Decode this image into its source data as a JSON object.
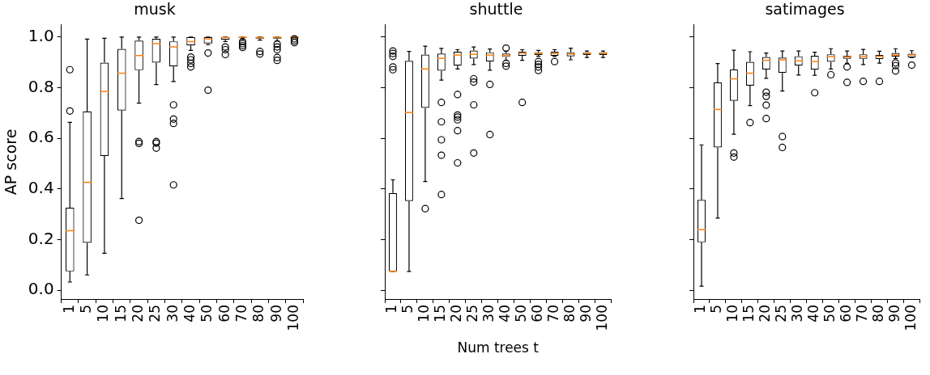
{
  "chart_data": [
    {
      "type": "box",
      "title": "musk",
      "ylabel": "AP score",
      "color": "#000000",
      "marker": "circle",
      "categories": [
        "1",
        "5",
        "10",
        "15",
        "20",
        "25",
        "30",
        "40",
        "50",
        "60",
        "70",
        "80",
        "90",
        "100"
      ],
      "ylim": [
        -0.035,
        1.048
      ],
      "yticks": [
        {
          "value": 0,
          "label": "0.0"
        },
        {
          "value": 0.2,
          "label": "0.2"
        },
        {
          "value": 0.4,
          "label": "0.4"
        },
        {
          "value": 0.6,
          "label": "0.6"
        },
        {
          "value": 0.8,
          "label": "0.8"
        },
        {
          "value": 1,
          "label": "1.0"
        }
      ],
      "boxes": [
        {
          "low": 0.032,
          "q1": 0.074,
          "median": 0.235,
          "q3": 0.326,
          "high": 0.663,
          "outliers": [
            0.708,
            0.871
          ]
        },
        {
          "low": 0.06,
          "q1": 0.187,
          "median": 0.426,
          "q3": 0.706,
          "high": 0.992
        },
        {
          "low": 0.146,
          "q1": 0.53,
          "median": 0.785,
          "q3": 0.899,
          "high": 0.995
        },
        {
          "low": 0.362,
          "q1": 0.71,
          "median": 0.857,
          "q3": 0.953,
          "high": 1.0
        },
        {
          "low": 0.739,
          "q1": 0.869,
          "median": 0.927,
          "q3": 0.986,
          "high": 1.0,
          "outliers": [
            0.587,
            0.58,
            0.276
          ]
        },
        {
          "low": 0.812,
          "q1": 0.899,
          "median": 0.974,
          "q3": 0.993,
          "high": 1.0,
          "outliers": [
            0.587,
            0.581,
            0.561
          ]
        },
        {
          "low": 0.824,
          "q1": 0.884,
          "median": 0.961,
          "q3": 0.983,
          "high": 1.0,
          "outliers": [
            0.732,
            0.676,
            0.659,
            0.416
          ]
        },
        {
          "low": 0.947,
          "q1": 0.967,
          "median": 0.982,
          "q3": 1.0,
          "high": 1.0,
          "outliers": [
            0.921,
            0.91,
            0.896,
            0.882
          ]
        },
        {
          "low": 0.97,
          "q1": 0.975,
          "median": 0.993,
          "q3": 1.0,
          "high": 1.0,
          "outliers": [
            0.937,
            0.79
          ]
        },
        {
          "low": 0.982,
          "q1": 0.989,
          "median": 0.998,
          "q3": 1.0,
          "high": 1.0,
          "outliers": [
            0.961,
            0.95,
            0.931
          ]
        },
        {
          "low": 0.99,
          "q1": 0.997,
          "median": 0.999,
          "q3": 1.0,
          "high": 1.0,
          "outliers": [
            0.982,
            0.974,
            0.966,
            0.959
          ]
        },
        {
          "low": 0.988,
          "q1": 0.994,
          "median": 0.998,
          "q3": 1.0,
          "high": 1.0,
          "outliers": [
            0.943,
            0.933
          ]
        },
        {
          "low": 0.985,
          "q1": 0.994,
          "median": 0.999,
          "q3": 1.0,
          "high": 1.0,
          "outliers": [
            0.972,
            0.961,
            0.95,
            0.919,
            0.908
          ]
        },
        {
          "low": 0.998,
          "q1": 0.998,
          "median": 0.999,
          "q3": 1.0,
          "high": 1.0,
          "outliers": [
            0.993,
            0.985,
            0.978
          ]
        }
      ]
    },
    {
      "type": "box",
      "title": "shuttle",
      "xlabel": "Num trees t",
      "color": "#000000",
      "marker": "circle",
      "tick_labels": "x",
      "categories": [
        "1",
        "5",
        "10",
        "15",
        "20",
        "25",
        "30",
        "40",
        "50",
        "60",
        "70",
        "80",
        "90",
        "100"
      ],
      "ylim": [
        -0.035,
        1.048
      ],
      "yticks": [
        {
          "value": 0,
          "label": null
        },
        {
          "value": 0.2,
          "label": null
        },
        {
          "value": 0.4,
          "label": null
        },
        {
          "value": 0.6,
          "label": null
        },
        {
          "value": 0.8,
          "label": null
        },
        {
          "value": 1,
          "label": null
        }
      ],
      "boxes": [
        {
          "low": 0.074,
          "q1": 0.074,
          "median": 0.074,
          "q3": 0.384,
          "high": 0.436,
          "outliers": [
            0.945,
            0.935,
            0.924,
            0.882,
            0.871
          ]
        },
        {
          "low": 0.074,
          "q1": 0.352,
          "median": 0.702,
          "q3": 0.906,
          "high": 0.943
        },
        {
          "low": 0.429,
          "q1": 0.72,
          "median": 0.874,
          "q3": 0.931,
          "high": 0.964,
          "outliers": [
            0.322
          ]
        },
        {
          "low": 0.83,
          "q1": 0.867,
          "median": 0.916,
          "q3": 0.935,
          "high": 0.955,
          "outliers": [
            0.742,
            0.665,
            0.594,
            0.533,
            0.378
          ]
        },
        {
          "low": 0.874,
          "q1": 0.887,
          "median": 0.929,
          "q3": 0.942,
          "high": 0.95,
          "outliers": [
            0.773,
            0.692,
            0.684,
            0.673,
            0.63,
            0.503
          ]
        },
        {
          "low": 0.891,
          "q1": 0.915,
          "median": 0.932,
          "q3": 0.947,
          "high": 0.961,
          "outliers": [
            0.835,
            0.822,
            0.732,
            0.542
          ]
        },
        {
          "low": 0.869,
          "q1": 0.903,
          "median": 0.929,
          "q3": 0.94,
          "high": 0.953,
          "outliers": [
            0.813,
            0.615
          ]
        },
        {
          "low": 0.908,
          "q1": 0.921,
          "median": 0.927,
          "q3": 0.935,
          "high": 0.945,
          "outliers": [
            0.956,
            0.896,
            0.885
          ]
        },
        {
          "low": 0.908,
          "q1": 0.926,
          "median": 0.937,
          "q3": 0.942,
          "high": 0.95,
          "outliers": [
            0.742
          ]
        },
        {
          "low": 0.924,
          "q1": 0.929,
          "median": 0.935,
          "q3": 0.94,
          "high": 0.947,
          "outliers": [
            0.903,
            0.892,
            0.882,
            0.868
          ]
        },
        {
          "low": 0.924,
          "q1": 0.926,
          "median": 0.935,
          "q3": 0.942,
          "high": 0.95,
          "outliers": [
            0.903
          ]
        },
        {
          "low": 0.91,
          "q1": 0.924,
          "median": 0.933,
          "q3": 0.94,
          "high": 0.956
        },
        {
          "low": 0.919,
          "q1": 0.929,
          "median": 0.935,
          "q3": 0.94,
          "high": 0.945
        },
        {
          "low": 0.919,
          "q1": 0.929,
          "median": 0.935,
          "q3": 0.94,
          "high": 0.945
        }
      ]
    },
    {
      "type": "box",
      "title": "satimages",
      "color": "#000000",
      "marker": "circle",
      "tick_labels": "x",
      "categories": [
        "1",
        "5",
        "10",
        "15",
        "20",
        "25",
        "30",
        "40",
        "50",
        "60",
        "70",
        "80",
        "90",
        "100"
      ],
      "ylim": [
        -0.035,
        1.048
      ],
      "yticks": [
        {
          "value": 0,
          "label": null
        },
        {
          "value": 0.2,
          "label": null
        },
        {
          "value": 0.4,
          "label": null
        },
        {
          "value": 0.6,
          "label": null
        },
        {
          "value": 0.8,
          "label": null
        },
        {
          "value": 1,
          "label": null
        }
      ],
      "boxes": [
        {
          "low": 0.016,
          "q1": 0.189,
          "median": 0.239,
          "q3": 0.357,
          "high": 0.574
        },
        {
          "low": 0.285,
          "q1": 0.564,
          "median": 0.714,
          "q3": 0.821,
          "high": 0.895
        },
        {
          "low": 0.616,
          "q1": 0.748,
          "median": 0.835,
          "q3": 0.872,
          "high": 0.948,
          "outliers": [
            0.542,
            0.526
          ]
        },
        {
          "low": 0.729,
          "q1": 0.808,
          "median": 0.857,
          "q3": 0.902,
          "high": 0.942,
          "outliers": [
            0.662
          ]
        },
        {
          "low": 0.837,
          "q1": 0.872,
          "median": 0.908,
          "q3": 0.921,
          "high": 0.937,
          "outliers": [
            0.782,
            0.766,
            0.731,
            0.678
          ]
        },
        {
          "low": 0.787,
          "q1": 0.858,
          "median": 0.91,
          "q3": 0.919,
          "high": 0.945,
          "outliers": [
            0.607,
            0.564
          ]
        },
        {
          "low": 0.85,
          "q1": 0.887,
          "median": 0.906,
          "q3": 0.924,
          "high": 0.945
        },
        {
          "low": 0.849,
          "q1": 0.871,
          "median": 0.903,
          "q3": 0.926,
          "high": 0.94,
          "outliers": [
            0.78
          ]
        },
        {
          "low": 0.874,
          "q1": 0.902,
          "median": 0.923,
          "q3": 0.932,
          "high": 0.954,
          "outliers": [
            0.851
          ]
        },
        {
          "low": 0.896,
          "q1": 0.914,
          "median": 0.922,
          "q3": 0.926,
          "high": 0.945,
          "outliers": [
            0.882,
            0.821
          ]
        },
        {
          "low": 0.891,
          "q1": 0.914,
          "median": 0.924,
          "q3": 0.932,
          "high": 0.951,
          "outliers": [
            0.825
          ]
        },
        {
          "low": 0.897,
          "q1": 0.913,
          "median": 0.924,
          "q3": 0.929,
          "high": 0.944,
          "outliers": [
            0.825
          ]
        },
        {
          "low": 0.915,
          "q1": 0.923,
          "median": 0.929,
          "q3": 0.937,
          "high": 0.954,
          "outliers": [
            0.898,
            0.887,
            0.866
          ]
        },
        {
          "low": 0.919,
          "q1": 0.919,
          "median": 0.929,
          "q3": 0.934,
          "high": 0.946,
          "outliers": [
            0.889
          ]
        }
      ]
    }
  ]
}
